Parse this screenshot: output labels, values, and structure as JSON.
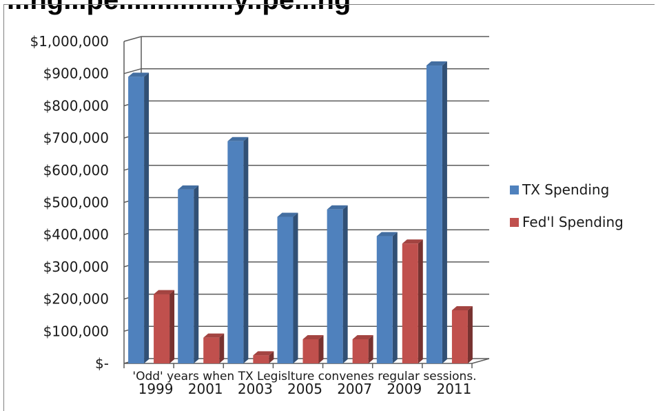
{
  "chart_data": {
    "type": "bar",
    "title": "...ng...pe...............y..pe...ng",
    "categories": [
      "1999",
      "2001",
      "2003",
      "2005",
      "2007",
      "2009",
      "2011"
    ],
    "series": [
      {
        "name": "TX Spending",
        "color": "#4f81bd",
        "values": [
          890000,
          540000,
          690000,
          455000,
          478000,
          395000,
          925000
        ]
      },
      {
        "name": "Fed'l Spending",
        "color": "#c0504d",
        "values": [
          215000,
          80000,
          25000,
          75000,
          75000,
          372000,
          165000
        ]
      }
    ],
    "ylim": [
      0,
      1000000
    ],
    "y_ticks": [
      {
        "value": 0,
        "label": "$-"
      },
      {
        "value": 100000,
        "label": "$100,000"
      },
      {
        "value": 200000,
        "label": "$200,000"
      },
      {
        "value": 300000,
        "label": "$300,000"
      },
      {
        "value": 400000,
        "label": "$400,000"
      },
      {
        "value": 500000,
        "label": "$500,000"
      },
      {
        "value": 600000,
        "label": "$600,000"
      },
      {
        "value": 700000,
        "label": "$700,000"
      },
      {
        "value": 800000,
        "label": "$800,000"
      },
      {
        "value": 900000,
        "label": "$900,000"
      },
      {
        "value": 1000000,
        "label": "$1,000,000"
      }
    ],
    "annotation": "'Odd' years when TX Legislture convenes regular sessions.",
    "grid": true,
    "legend_position": "right"
  }
}
